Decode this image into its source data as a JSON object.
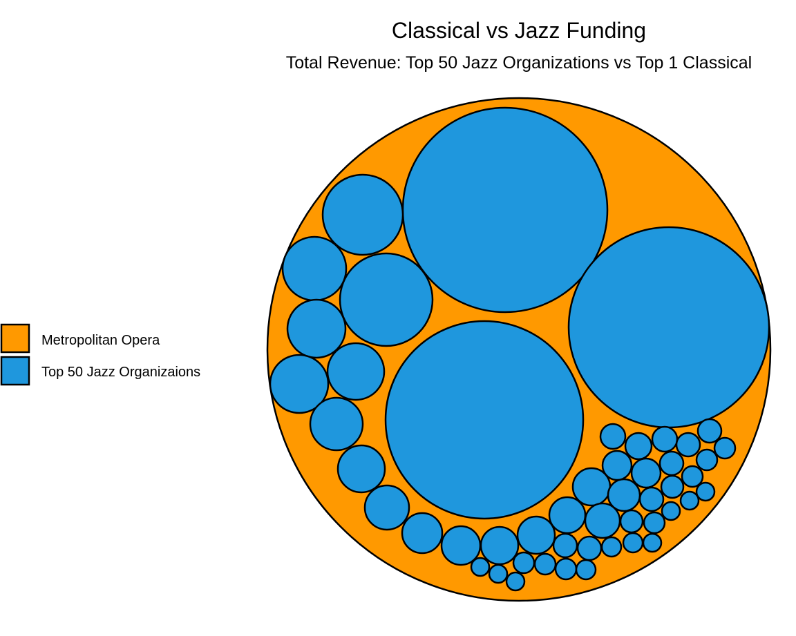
{
  "chart_data": {
    "type": "circle-packing",
    "title": "Classical vs Jazz Funding",
    "subtitle": "Total Revenue: Top 50 Jazz Organizations vs Top 1 Classical",
    "colors": {
      "Metropolitan Opera": "#ff9900",
      "Top 50 Jazz Organizaions": "#1f97dd",
      "stroke": "#000000"
    },
    "legend": {
      "position": "left",
      "entries": [
        {
          "label": "Metropolitan Opera",
          "color": "#ff9900"
        },
        {
          "label": "Top 50 Jazz Organizaions",
          "color": "#1f97dd"
        }
      ]
    },
    "series": [
      {
        "name": "Metropolitan Opera",
        "relative_area": 1.0
      },
      {
        "name": "Top 50 Jazz Organizaions",
        "count": 50,
        "relative_areas_to_opera": [
          0.1656,
          0.1595,
          0.155,
          0.0356,
          0.0254,
          0.0162,
          0.0162,
          0.0145,
          0.0128,
          0.0128,
          0.0111,
          0.009,
          0.0085,
          0.008,
          0.0076,
          0.0068,
          0.0068,
          0.0064,
          0.006,
          0.0056,
          0.0053,
          0.0053,
          0.0046,
          0.004,
          0.0036,
          0.0033,
          0.0033,
          0.003,
          0.0028,
          0.0027,
          0.0026,
          0.0025,
          0.0024,
          0.0023,
          0.0023,
          0.0022,
          0.0021,
          0.002,
          0.0019,
          0.0019,
          0.0018,
          0.0017,
          0.0017,
          0.0016,
          0.0015,
          0.0015,
          0.0014,
          0.0014,
          0.0013,
          0.0013
        ]
      }
    ]
  }
}
